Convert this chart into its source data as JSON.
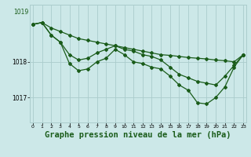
{
  "background_color": "#cce8e8",
  "grid_color": "#aacccc",
  "line_color": "#1a5c1a",
  "marker_color": "#1a5c1a",
  "title": "Graphe pression niveau de la mer (hPa)",
  "title_fontsize": 7.5,
  "xlim": [
    -0.3,
    23.3
  ],
  "ylim": [
    1016.3,
    1019.6
  ],
  "yticks": [
    1017,
    1018
  ],
  "ytop_label": 1019,
  "x_ticks": [
    0,
    1,
    2,
    3,
    4,
    5,
    6,
    7,
    8,
    9,
    10,
    11,
    12,
    13,
    14,
    15,
    16,
    17,
    18,
    19,
    20,
    21,
    22,
    23
  ],
  "series_flat": [
    1019.05,
    1019.1,
    1018.95,
    1018.85,
    1018.75,
    1018.65,
    1018.6,
    1018.55,
    1018.5,
    1018.45,
    1018.4,
    1018.35,
    1018.3,
    1018.25,
    1018.2,
    1018.18,
    1018.15,
    1018.12,
    1018.1,
    1018.08,
    1018.05,
    1018.03,
    1018.0,
    1018.2
  ],
  "series_mid": [
    1019.05,
    1019.1,
    1018.75,
    1018.55,
    1018.2,
    1018.05,
    1018.1,
    1018.25,
    1018.35,
    1018.45,
    1018.35,
    1018.3,
    1018.2,
    1018.15,
    1018.05,
    1017.85,
    1017.65,
    1017.55,
    1017.45,
    1017.4,
    1017.35,
    1017.6,
    1017.9,
    1018.2
  ],
  "series_low": [
    1019.05,
    1019.1,
    1018.75,
    1018.55,
    1017.95,
    1017.75,
    1017.8,
    1018.0,
    1018.1,
    1018.35,
    1018.2,
    1018.0,
    1017.95,
    1017.85,
    1017.8,
    1017.6,
    1017.35,
    1017.2,
    1016.85,
    1016.82,
    1017.0,
    1017.3,
    1017.85,
    1018.2
  ]
}
